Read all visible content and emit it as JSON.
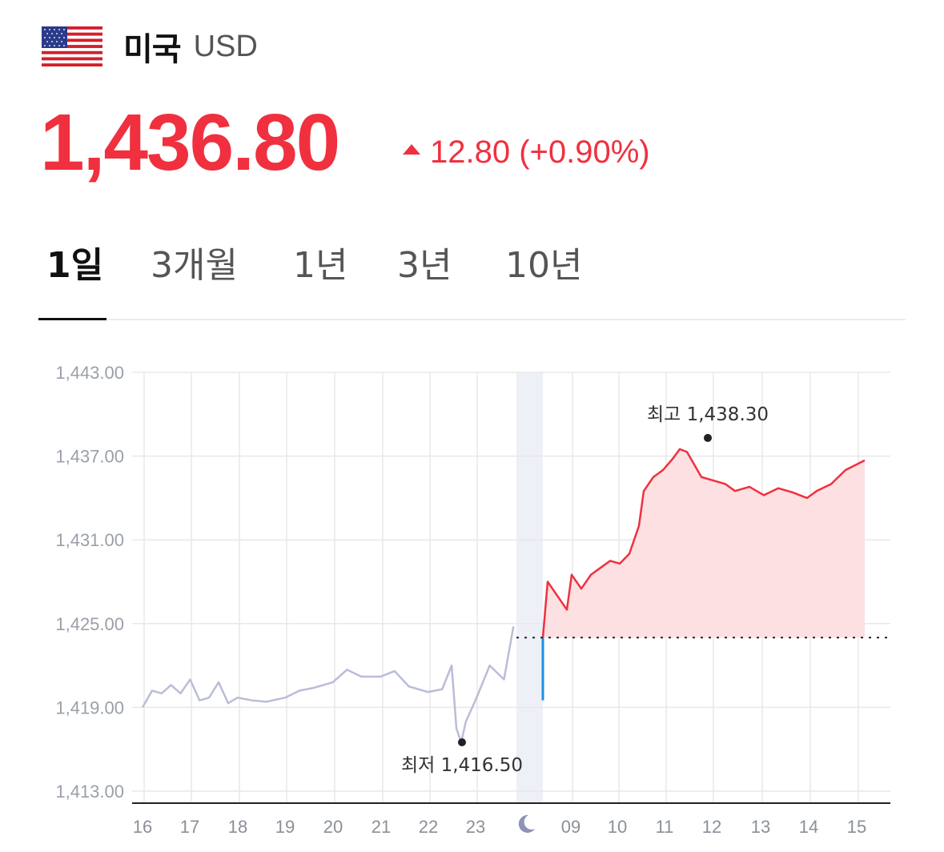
{
  "header": {
    "country": "미국",
    "currency": "USD",
    "flag_icon": "us-flag-icon"
  },
  "quote": {
    "price": "1,436.80",
    "change": "12.80 (+0.90%)",
    "direction": "up",
    "color_up": "#f0303f"
  },
  "tabs": [
    {
      "label": "1일",
      "active": true
    },
    {
      "label": "3개월",
      "active": false
    },
    {
      "label": "1년",
      "active": false
    },
    {
      "label": "3년",
      "active": false
    },
    {
      "label": "10년",
      "active": false
    }
  ],
  "chart_data": {
    "type": "line",
    "y_ticks": [
      "1,443.00",
      "1,437.00",
      "1,431.00",
      "1,425.00",
      "1,419.00",
      "1,413.00"
    ],
    "y_tick_values": [
      1443,
      1437,
      1431,
      1425,
      1419,
      1413
    ],
    "ylim": [
      1413,
      1443
    ],
    "x_tick_labels": [
      "16",
      "17",
      "18",
      "19",
      "20",
      "21",
      "22",
      "23",
      "night-moon-icon",
      "09",
      "10",
      "11",
      "12",
      "13",
      "14",
      "15"
    ],
    "previous_close": 1424.0,
    "high_label": "최고 1,438.30",
    "high_value": 1438.3,
    "low_label": "최저 1,416.50",
    "low_value": 1416.5,
    "colors": {
      "prev_session": "#b9bdd8",
      "current_session": "#f0303f",
      "fill": "#fde0e2",
      "open_bar": "#1a8fe3",
      "night_band": "#eef0f7",
      "grid": "#e8e8e8"
    },
    "series": [
      {
        "session": "previous",
        "x": [
          16.0,
          16.2,
          16.4,
          16.6,
          16.8,
          17.0,
          17.2,
          17.4,
          17.6,
          17.8,
          18.0,
          18.3,
          18.6,
          19.0,
          19.3,
          19.6,
          20.0,
          20.3,
          20.6,
          21.0,
          21.3,
          21.6,
          22.0,
          22.3,
          22.5,
          22.6,
          22.7,
          22.8,
          23.0,
          23.3,
          23.6,
          23.8
        ],
        "values": [
          1419.0,
          1420.2,
          1420.0,
          1420.6,
          1420.0,
          1421.0,
          1419.5,
          1419.7,
          1420.8,
          1419.3,
          1419.7,
          1419.5,
          1419.4,
          1419.7,
          1420.2,
          1420.4,
          1420.8,
          1421.7,
          1421.2,
          1421.2,
          1421.6,
          1420.5,
          1420.1,
          1420.3,
          1422.0,
          1417.5,
          1416.5,
          1418.0,
          1419.5,
          1422.0,
          1421.0,
          1424.8
        ]
      },
      {
        "session": "current",
        "x": [
          9.0,
          9.1,
          9.3,
          9.5,
          9.6,
          9.8,
          10.0,
          10.2,
          10.4,
          10.6,
          10.8,
          11.0,
          11.1,
          11.3,
          11.5,
          11.7,
          11.85,
          12.0,
          12.3,
          12.6,
          12.8,
          13.0,
          13.3,
          13.6,
          13.9,
          14.2,
          14.5,
          14.7,
          15.0,
          15.3,
          15.7
        ],
        "values": [
          1424.0,
          1428.0,
          1427.0,
          1426.0,
          1428.5,
          1427.5,
          1428.5,
          1429.0,
          1429.5,
          1429.3,
          1430.0,
          1432.0,
          1434.5,
          1435.5,
          1436.0,
          1436.8,
          1437.5,
          1437.3,
          1435.5,
          1435.2,
          1435.0,
          1434.5,
          1434.8,
          1434.2,
          1434.7,
          1434.4,
          1434.0,
          1434.5,
          1435.0,
          1436.0,
          1436.7
        ]
      }
    ]
  }
}
